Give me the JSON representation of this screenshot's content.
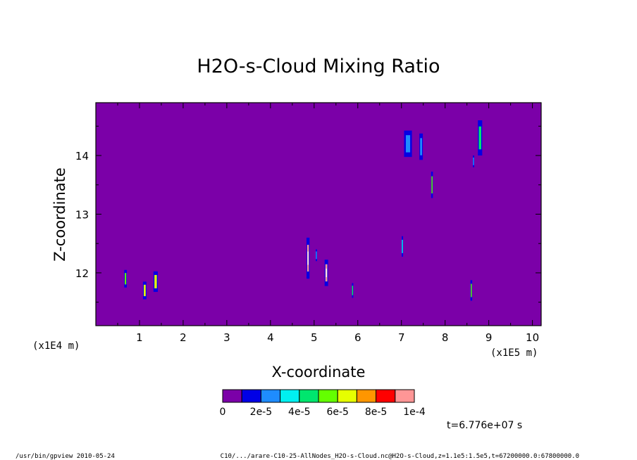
{
  "chart_data": {
    "type": "heatmap",
    "title": "H2O-s-Cloud Mixing Ratio",
    "xlabel": "X-coordinate",
    "ylabel": "Z-coordinate",
    "x_scale_left": "(x1E4 m)",
    "x_scale_right": "(x1E5 m)",
    "xlim": [
      0,
      10.2
    ],
    "ylim": [
      11.1,
      14.9
    ],
    "x_ticks": [
      1,
      2,
      3,
      4,
      5,
      6,
      7,
      8,
      9,
      10
    ],
    "x_tick_labels": [
      "1",
      "2",
      "3",
      "4",
      "5",
      "6",
      "7",
      "8",
      "9",
      "10"
    ],
    "y_ticks": [
      12,
      13,
      14
    ],
    "y_tick_labels": [
      "12",
      "13",
      "14"
    ],
    "background_color": "#7b00a8",
    "colorbar": {
      "colors": [
        "#7b00a8",
        "#0000e6",
        "#1e8cff",
        "#00f0f0",
        "#00e66e",
        "#64ff00",
        "#e6ff00",
        "#ff9600",
        "#ff0000",
        "#ff9696"
      ],
      "labels": [
        "0",
        "2e-5",
        "4e-5",
        "6e-5",
        "8e-5",
        "1e-4"
      ]
    },
    "time_label": "t=6.776e+07 s",
    "features": [
      {
        "x": 0.68,
        "z": 11.9,
        "w": 0.06,
        "h": 0.3,
        "value": 5e-05
      },
      {
        "x": 1.12,
        "z": 11.7,
        "w": 0.08,
        "h": 0.3,
        "value": 6e-05
      },
      {
        "x": 1.37,
        "z": 11.85,
        "w": 0.1,
        "h": 0.35,
        "value": 7e-05
      },
      {
        "x": 4.86,
        "z": 12.25,
        "w": 0.07,
        "h": 0.7,
        "value": 0.0001
      },
      {
        "x": 5.05,
        "z": 12.3,
        "w": 0.03,
        "h": 0.2,
        "value": 2e-05
      },
      {
        "x": 5.28,
        "z": 12.0,
        "w": 0.08,
        "h": 0.45,
        "value": 0.0001
      },
      {
        "x": 5.88,
        "z": 11.7,
        "w": 0.03,
        "h": 0.25,
        "value": 4e-05
      },
      {
        "x": 7.02,
        "z": 12.45,
        "w": 0.03,
        "h": 0.35,
        "value": 3e-05
      },
      {
        "x": 7.15,
        "z": 14.2,
        "w": 0.18,
        "h": 0.45,
        "value": 2e-05
      },
      {
        "x": 7.45,
        "z": 14.15,
        "w": 0.08,
        "h": 0.45,
        "value": 2e-05
      },
      {
        "x": 7.7,
        "z": 13.5,
        "w": 0.04,
        "h": 0.45,
        "value": 5e-05
      },
      {
        "x": 8.6,
        "z": 11.7,
        "w": 0.04,
        "h": 0.35,
        "value": 5e-05
      },
      {
        "x": 8.8,
        "z": 14.3,
        "w": 0.1,
        "h": 0.6,
        "value": 4e-05
      },
      {
        "x": 8.65,
        "z": 13.9,
        "w": 0.03,
        "h": 0.2,
        "value": 2e-05
      }
    ]
  },
  "footer": {
    "left": "/usr/bin/gpview  2010-05-24",
    "right": "C10/.../arare-C10-25-AllNodes_H2O-s-Cloud.nc@H2O-s-Cloud,z=1.1e5:1.5e5,t=67200000.0:67800000.0"
  }
}
